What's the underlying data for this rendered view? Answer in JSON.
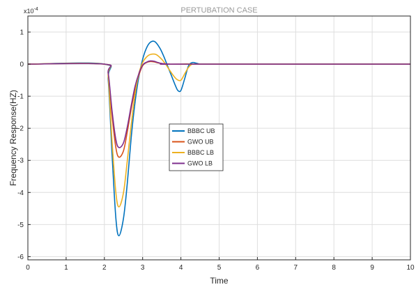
{
  "chart_data": {
    "type": "line",
    "title": "PERTUBATION CASE",
    "xlabel": "Time",
    "ylabel": "Frequency Response(HZ)",
    "y_exponent_label": "x10",
    "y_exponent": "-4",
    "xlim": [
      0,
      10
    ],
    "ylim": [
      -6.1,
      1.5
    ],
    "x_ticks": [
      0,
      1,
      2,
      3,
      4,
      5,
      6,
      7,
      8,
      9,
      10
    ],
    "y_ticks": [
      -6,
      -5,
      -4,
      -3,
      -2,
      -1,
      0,
      1
    ],
    "grid": true,
    "legend_position": "center",
    "series": [
      {
        "name": "BBBC UB",
        "color": "#0072BD",
        "x": [
          0,
          2.0,
          2.1,
          2.2,
          2.3,
          2.38,
          2.5,
          2.6,
          2.7,
          2.8,
          2.9,
          3.0,
          3.1,
          3.2,
          3.32,
          3.45,
          3.55,
          3.65,
          3.75,
          3.85,
          3.92,
          4.0,
          4.1,
          4.2,
          4.3,
          4.4,
          4.5,
          4.6,
          10
        ],
        "y": [
          0,
          0,
          -0.5,
          -2.8,
          -4.8,
          -5.35,
          -4.8,
          -3.7,
          -2.3,
          -1.2,
          -0.4,
          0.15,
          0.5,
          0.68,
          0.7,
          0.5,
          0.25,
          -0.05,
          -0.35,
          -0.65,
          -0.82,
          -0.82,
          -0.45,
          -0.05,
          0.05,
          0.03,
          0,
          0,
          0
        ]
      },
      {
        "name": "GWO UB",
        "color": "#D95319",
        "x": [
          0,
          2.0,
          2.1,
          2.2,
          2.3,
          2.38,
          2.5,
          2.6,
          2.7,
          2.8,
          2.9,
          3.0,
          3.1,
          3.2,
          3.3,
          3.4,
          3.5,
          3.7,
          4.0,
          10
        ],
        "y": [
          0,
          0,
          -0.3,
          -1.6,
          -2.6,
          -2.9,
          -2.7,
          -2.1,
          -1.4,
          -0.8,
          -0.35,
          -0.05,
          0.05,
          0.08,
          0.07,
          0.04,
          0.02,
          0,
          0,
          0
        ]
      },
      {
        "name": "BBBC LB",
        "color": "#EDB120",
        "x": [
          0,
          2.0,
          2.1,
          2.2,
          2.3,
          2.38,
          2.5,
          2.6,
          2.7,
          2.8,
          2.9,
          3.0,
          3.1,
          3.2,
          3.35,
          3.5,
          3.6,
          3.7,
          3.8,
          3.9,
          4.0,
          4.1,
          4.2,
          4.3,
          4.5,
          10
        ],
        "y": [
          0,
          0,
          -0.4,
          -2.4,
          -4.0,
          -4.45,
          -4.0,
          -3.0,
          -1.9,
          -0.95,
          -0.3,
          0.05,
          0.22,
          0.3,
          0.3,
          0.15,
          0.0,
          -0.18,
          -0.35,
          -0.48,
          -0.5,
          -0.3,
          -0.1,
          0.0,
          0,
          0
        ]
      },
      {
        "name": "GWO LB",
        "color": "#7E2F8E",
        "x": [
          0,
          2.0,
          2.1,
          2.2,
          2.3,
          2.38,
          2.5,
          2.6,
          2.7,
          2.8,
          2.9,
          3.0,
          3.1,
          3.2,
          3.3,
          3.4,
          3.5,
          3.7,
          4.0,
          10
        ],
        "y": [
          0,
          0,
          -0.28,
          -1.45,
          -2.35,
          -2.6,
          -2.45,
          -1.95,
          -1.3,
          -0.7,
          -0.3,
          -0.03,
          0.06,
          0.1,
          0.09,
          0.05,
          0.02,
          0,
          0,
          0
        ]
      }
    ]
  }
}
